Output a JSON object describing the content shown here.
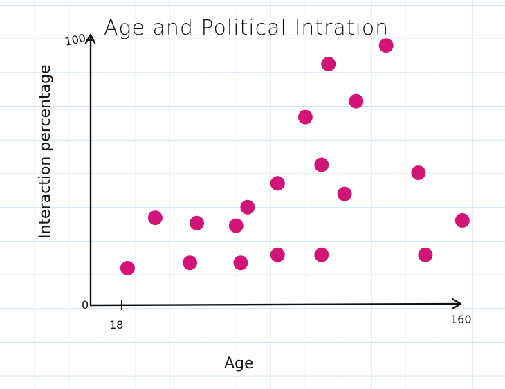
{
  "chart_data": {
    "type": "scatter",
    "title": "Age and Political Intration",
    "xlabel": "Age",
    "ylabel": "Interaction percentage",
    "xlim": [
      0,
      160
    ],
    "ylim": [
      0,
      100
    ],
    "x_tick_labels": [
      "0",
      "18",
      "160"
    ],
    "y_tick_labels": [
      "100"
    ],
    "grid": true,
    "points": [
      {
        "x": 16,
        "y": 14
      },
      {
        "x": 28,
        "y": 33
      },
      {
        "x": 43,
        "y": 16
      },
      {
        "x": 46,
        "y": 31
      },
      {
        "x": 63,
        "y": 30
      },
      {
        "x": 65,
        "y": 16
      },
      {
        "x": 68,
        "y": 37
      },
      {
        "x": 81,
        "y": 19
      },
      {
        "x": 81,
        "y": 46
      },
      {
        "x": 93,
        "y": 71
      },
      {
        "x": 100,
        "y": 53
      },
      {
        "x": 100,
        "y": 19
      },
      {
        "x": 103,
        "y": 91
      },
      {
        "x": 110,
        "y": 42
      },
      {
        "x": 115,
        "y": 77
      },
      {
        "x": 128,
        "y": 98
      },
      {
        "x": 142,
        "y": 50
      },
      {
        "x": 145,
        "y": 19
      },
      {
        "x": 161,
        "y": 32
      }
    ],
    "color": "#d21476"
  }
}
